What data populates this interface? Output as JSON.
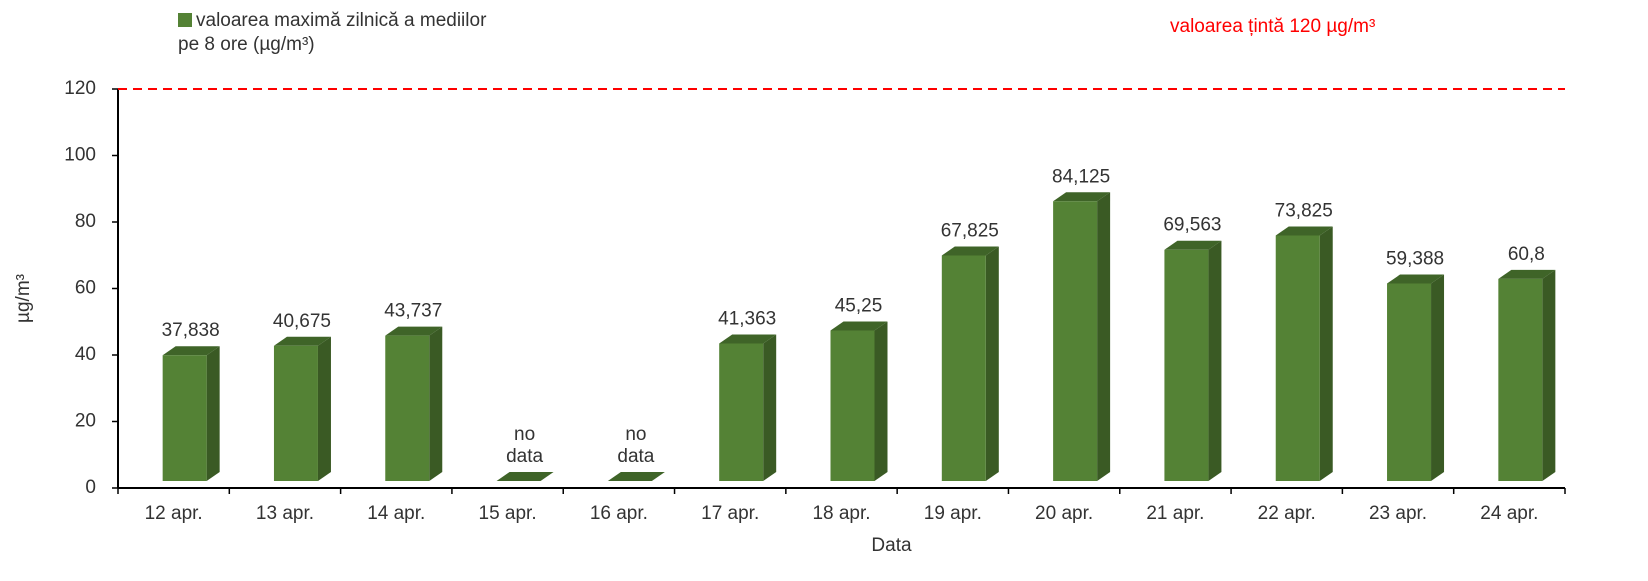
{
  "chart_data": {
    "type": "bar",
    "xlabel": "Data",
    "ylabel": "µg/m³",
    "categories": [
      "12 apr.",
      "13 apr.",
      "14 apr.",
      "15 apr.",
      "16 apr.",
      "17 apr.",
      "18 apr.",
      "19 apr.",
      "20 apr.",
      "21 apr.",
      "22 apr.",
      "23 apr.",
      "24 apr."
    ],
    "series": [
      {
        "name": "valoarea maximă zilnică a mediilor pe 8 ore (µg/m³)",
        "color": "#548235",
        "values": [
          37.838,
          40.675,
          43.737,
          null,
          null,
          41.363,
          45.25,
          67.825,
          84.125,
          69.563,
          73.825,
          59.388,
          60.8
        ],
        "value_labels": [
          "37,838",
          "40,675",
          "43,737",
          "no data",
          "no data",
          "41,363",
          "45,25",
          "67,825",
          "84,125",
          "69,563",
          "73,825",
          "59,388",
          "60,8"
        ]
      }
    ],
    "reference_line": {
      "value": 120,
      "color": "#ff0000",
      "label": "valoarea țintă 120 µg/m³"
    },
    "ylim": [
      0,
      120
    ],
    "yticks": [
      0,
      20,
      40,
      60,
      80,
      100,
      120
    ],
    "legend": "top-left"
  }
}
